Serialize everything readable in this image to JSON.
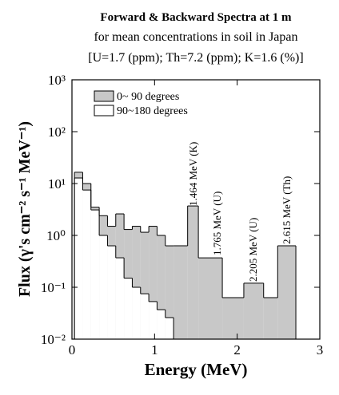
{
  "chart_data": {
    "type": "histogram",
    "title": "Forward & Backward Spectra at 1 m",
    "subtitle": [
      "for mean concentrations in soil in Japan",
      "[U=1.7 (ppm); Th=7.2 (ppm); K=1.6 (%)]"
    ],
    "xlabel": "Energy (MeV)",
    "ylabel": "Flux (γ's cm⁻² s⁻¹ MeV⁻¹)",
    "xlim": [
      0,
      3
    ],
    "xticks": [
      0,
      1,
      2,
      3
    ],
    "ylim": [
      0.01,
      1000
    ],
    "log_y": true,
    "yticks": [
      {
        "value": 1000,
        "label": "10³"
      },
      {
        "value": 100,
        "label": "10²"
      },
      {
        "value": 10,
        "label": "10¹"
      },
      {
        "value": 1,
        "label": "10⁰"
      },
      {
        "value": 0.1,
        "label": "10⁻¹"
      },
      {
        "value": 0.01,
        "label": "10⁻²"
      }
    ],
    "legend": "upper left",
    "series": [
      {
        "name": "0~ 90 degrees",
        "color": "#c8c8c8",
        "bins": [
          0.03,
          0.13,
          0.23,
          0.33,
          0.43,
          0.53,
          0.63,
          0.73,
          0.83,
          0.93,
          1.03,
          1.13,
          1.23,
          1.4,
          1.53,
          1.82,
          2.08,
          2.32,
          2.49,
          2.71
        ],
        "values": [
          16.5,
          10,
          3.5,
          2.4,
          1.5,
          2.6,
          1.3,
          1.5,
          1.15,
          1.5,
          1.0,
          0.63,
          0.63,
          3.7,
          0.37,
          0.063,
          0.12,
          0.063,
          0.63
        ]
      },
      {
        "name": "90~180 degrees",
        "color": "#ffffff",
        "bins": [
          0.03,
          0.13,
          0.23,
          0.33,
          0.43,
          0.53,
          0.63,
          0.73,
          0.83,
          0.93,
          1.03,
          1.13,
          1.23
        ],
        "values": [
          12.8,
          7.5,
          3.1,
          1.0,
          0.63,
          0.37,
          0.15,
          0.1,
          0.075,
          0.053,
          0.037,
          0.026
        ]
      }
    ],
    "annotations": [
      "1.464 MeV (K)",
      "1.765 MeV (U)",
      "2.205 MeV (U)",
      "2.615 MeV (Th)"
    ]
  }
}
